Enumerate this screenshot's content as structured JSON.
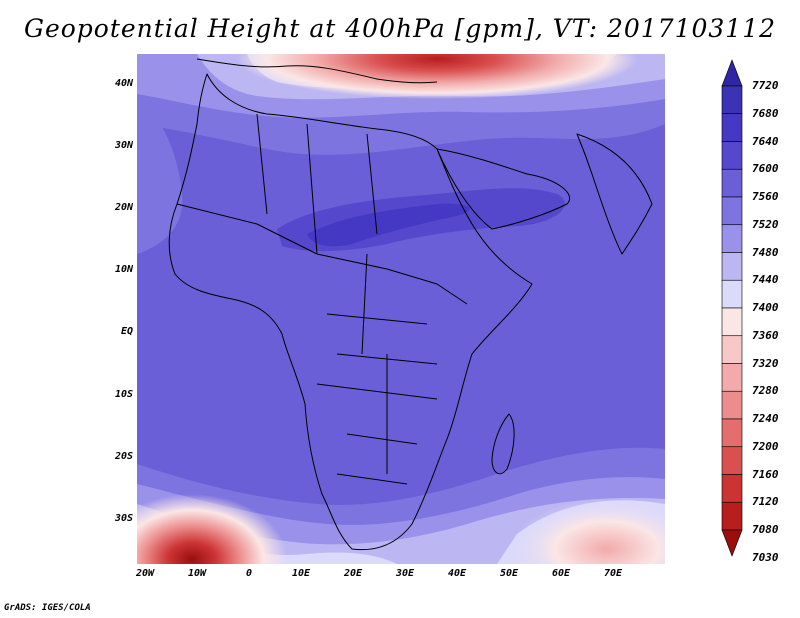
{
  "title": "Geopotential Height at 400hPa [gpm], VT: 2017103112",
  "footer": "GrADS: IGES/COLA",
  "map": {
    "lat_labels": [
      "40N",
      "30N",
      "20N",
      "10N",
      "EQ",
      "10S",
      "20S",
      "30S"
    ],
    "lon_labels": [
      "20W",
      "10W",
      "0",
      "10E",
      "20E",
      "30E",
      "40E",
      "50E",
      "60E",
      "70E"
    ]
  },
  "colorbar": {
    "levels": [
      "7720",
      "7680",
      "7640",
      "7600",
      "7560",
      "7520",
      "7480",
      "7440",
      "7400",
      "7360",
      "7320",
      "7280",
      "7240",
      "7200",
      "7160",
      "7120",
      "7080",
      "7030"
    ],
    "colors": [
      "#2f26a6",
      "#3b33b5",
      "#4538c4",
      "#5548cc",
      "#6a5fd6",
      "#7d74e0",
      "#9a92ea",
      "#bcb7f2",
      "#dcdafa",
      "#fbe6e6",
      "#f7c8c8",
      "#f2aaaa",
      "#ec8c8c",
      "#e46e6e",
      "#da5050",
      "#cc3434",
      "#b81e1e",
      "#9a0e0e"
    ]
  }
}
